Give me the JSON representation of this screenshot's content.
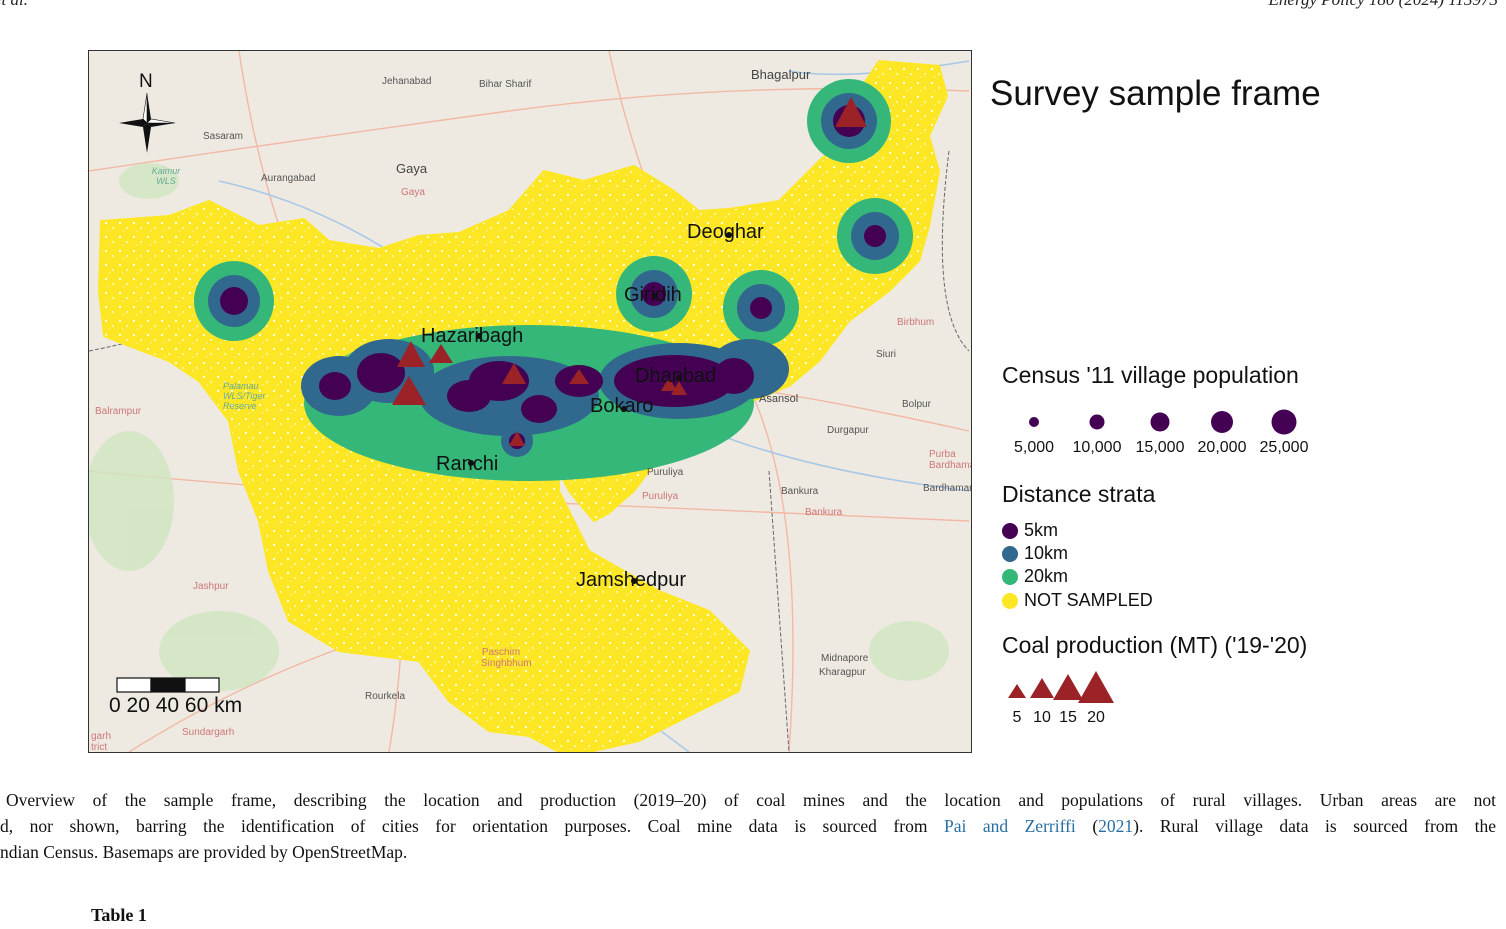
{
  "header": {
    "left": "et al.",
    "right": "Energy Policy 180 (2024) 113973"
  },
  "map": {
    "colors": {
      "land": "#eeeae2",
      "region": "#fde725",
      "strata_5km": "#440154",
      "strata_10km": "#31688e",
      "strata_20km": "#35b779",
      "coal": "#9b2226"
    },
    "north_label": "N",
    "background_places": [
      "Jehanabad",
      "Bihar Sharif",
      "Bhagalpur",
      "Sasaram",
      "Aurangabad",
      "Gaya",
      "Gaya",
      "Kaimur WLS",
      "Balrampur",
      "Palamau WLS/Tiger Reserve",
      "Birbhum",
      "Siuri",
      "Asansol",
      "Bolpur",
      "Durgapur",
      "Purba Bardhaman",
      "Bardhaman",
      "Puruliya",
      "Puruliya",
      "Bankura",
      "Bankura",
      "Jashpur",
      "Rourkela",
      "Sundargarh",
      "Paschim Singhbhum",
      "Midnapore",
      "Kharagpur",
      "garh trict"
    ],
    "cities": [
      "Deoghar",
      "Giridih",
      "Hazaribagh",
      "Dhanbad",
      "Bokaro",
      "Ranchi",
      "Jamshedpur"
    ],
    "scale_label": "0  20 40 60 km"
  },
  "legend": {
    "title": "Survey sample frame",
    "population": {
      "title": "Census '11 village population",
      "values": [
        5000,
        10000,
        15000,
        20000,
        25000
      ],
      "labels": [
        "5,000",
        "10,000",
        "15,000",
        "20,000",
        "25,000"
      ]
    },
    "strata": {
      "title": "Distance strata",
      "items": [
        {
          "label": "5km",
          "color": "#440154"
        },
        {
          "label": "10km",
          "color": "#31688e"
        },
        {
          "label": "20km",
          "color": "#35b779"
        },
        {
          "label": "NOT SAMPLED",
          "color": "#fde725"
        }
      ]
    },
    "coal": {
      "title": "Coal production (MT) ('19-'20)",
      "values": [
        5,
        10,
        15,
        20
      ],
      "labels": [
        "5",
        "10",
        "15",
        "20"
      ]
    }
  },
  "caption": {
    "line1": "Overview of the sample frame, describing the location and production (2019–20) of coal mines and the location and populations of rural villages. Urban areas are not",
    "line2_a": "d, nor shown, barring the identification of cities for orientation purposes. Coal mine data is sourced from",
    "line2_link": "Pai and Zerriffi",
    "line2_b": "(",
    "line2_year": "2021",
    "line2_c": "). Rural village data is sourced from the",
    "line3": "ndian Census. Basemaps are provided by OpenStreetMap."
  },
  "table_title": "Table 1"
}
